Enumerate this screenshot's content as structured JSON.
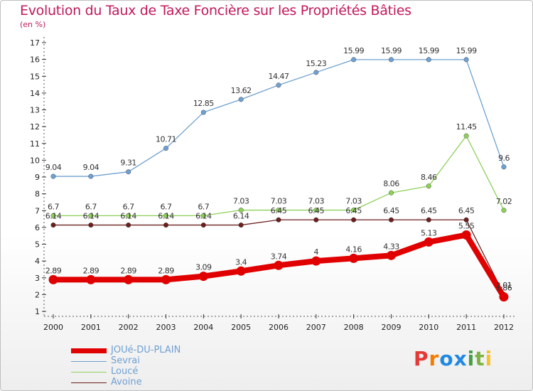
{
  "title": "Evolution du Taux de Taxe Foncière sur les Propriétés Bâties",
  "unit_label": "(en %)",
  "logo": {
    "text": "Proxiti",
    "letter_colors": [
      "#e53935",
      "#f57c00",
      "#1e88e5",
      "#1e88e5",
      "#43a047",
      "#7cb342",
      "#fbc02d"
    ]
  },
  "chart_data": {
    "type": "line",
    "title": "Evolution du Taux de Taxe Foncière sur les Propriétés Bâties",
    "ylabel": "(en %)",
    "xlabel": "",
    "x": [
      "2000",
      "2001",
      "2002",
      "2003",
      "2004",
      "2005",
      "2006",
      "2007",
      "2008",
      "2009",
      "2010",
      "2011",
      "2012"
    ],
    "ylim": [
      1,
      17
    ],
    "yticks": [
      1,
      2,
      3,
      4,
      5,
      6,
      7,
      8,
      9,
      10,
      11,
      12,
      13,
      14,
      15,
      16,
      17
    ],
    "grid": "dashed y-axis ticks only",
    "legend_position": "bottom-left",
    "series": [
      {
        "name": "JOUé-DU-PLAIN",
        "color": "#e00000",
        "values": [
          2.89,
          2.89,
          2.89,
          2.89,
          3.09,
          3.4,
          3.74,
          4,
          4.16,
          4.33,
          5.13,
          5.55,
          1.86
        ],
        "labels": [
          "2.89",
          "2.89",
          "2.89",
          "2.89",
          "3.09",
          "3.4",
          "3.74",
          "4",
          "4.16",
          "4.33",
          "5.13",
          "5.55",
          "1.86"
        ]
      },
      {
        "name": "Sevrai",
        "color": "#6fa0d2",
        "values": [
          9.04,
          9.04,
          9.31,
          10.71,
          12.85,
          13.62,
          14.47,
          15.23,
          15.99,
          15.99,
          15.99,
          15.99,
          9.6
        ],
        "labels": [
          "9.04",
          "9.04",
          "9.31",
          "10.71",
          "12.85",
          "13.62",
          "14.47",
          "15.23",
          "15.99",
          "15.99",
          "15.99",
          "15.99",
          "9.6"
        ]
      },
      {
        "name": "Loucé",
        "color": "#8ed05a",
        "values": [
          6.7,
          6.7,
          6.7,
          6.7,
          6.7,
          7.03,
          7.03,
          7.03,
          7.03,
          8.06,
          8.46,
          11.45,
          7.02
        ],
        "labels": [
          "6.7",
          "6.7",
          "6.7",
          "6.7",
          "6.7",
          "7.03",
          "7.03",
          "7.03",
          "7.03",
          "8.06",
          "8.46",
          "11.45",
          "7.02"
        ]
      },
      {
        "name": "Avoine",
        "color": "#6b1f1f",
        "values": [
          6.14,
          6.14,
          6.14,
          6.14,
          6.14,
          6.14,
          6.45,
          6.45,
          6.45,
          6.45,
          6.45,
          6.45,
          2.01
        ],
        "labels": [
          "6.14",
          "6.14",
          "6.14",
          "6.14",
          "6.14",
          "6.14",
          "6.45",
          "6.45",
          "6.45",
          "6.45",
          "6.45",
          "6.45",
          "2.01"
        ]
      }
    ]
  }
}
